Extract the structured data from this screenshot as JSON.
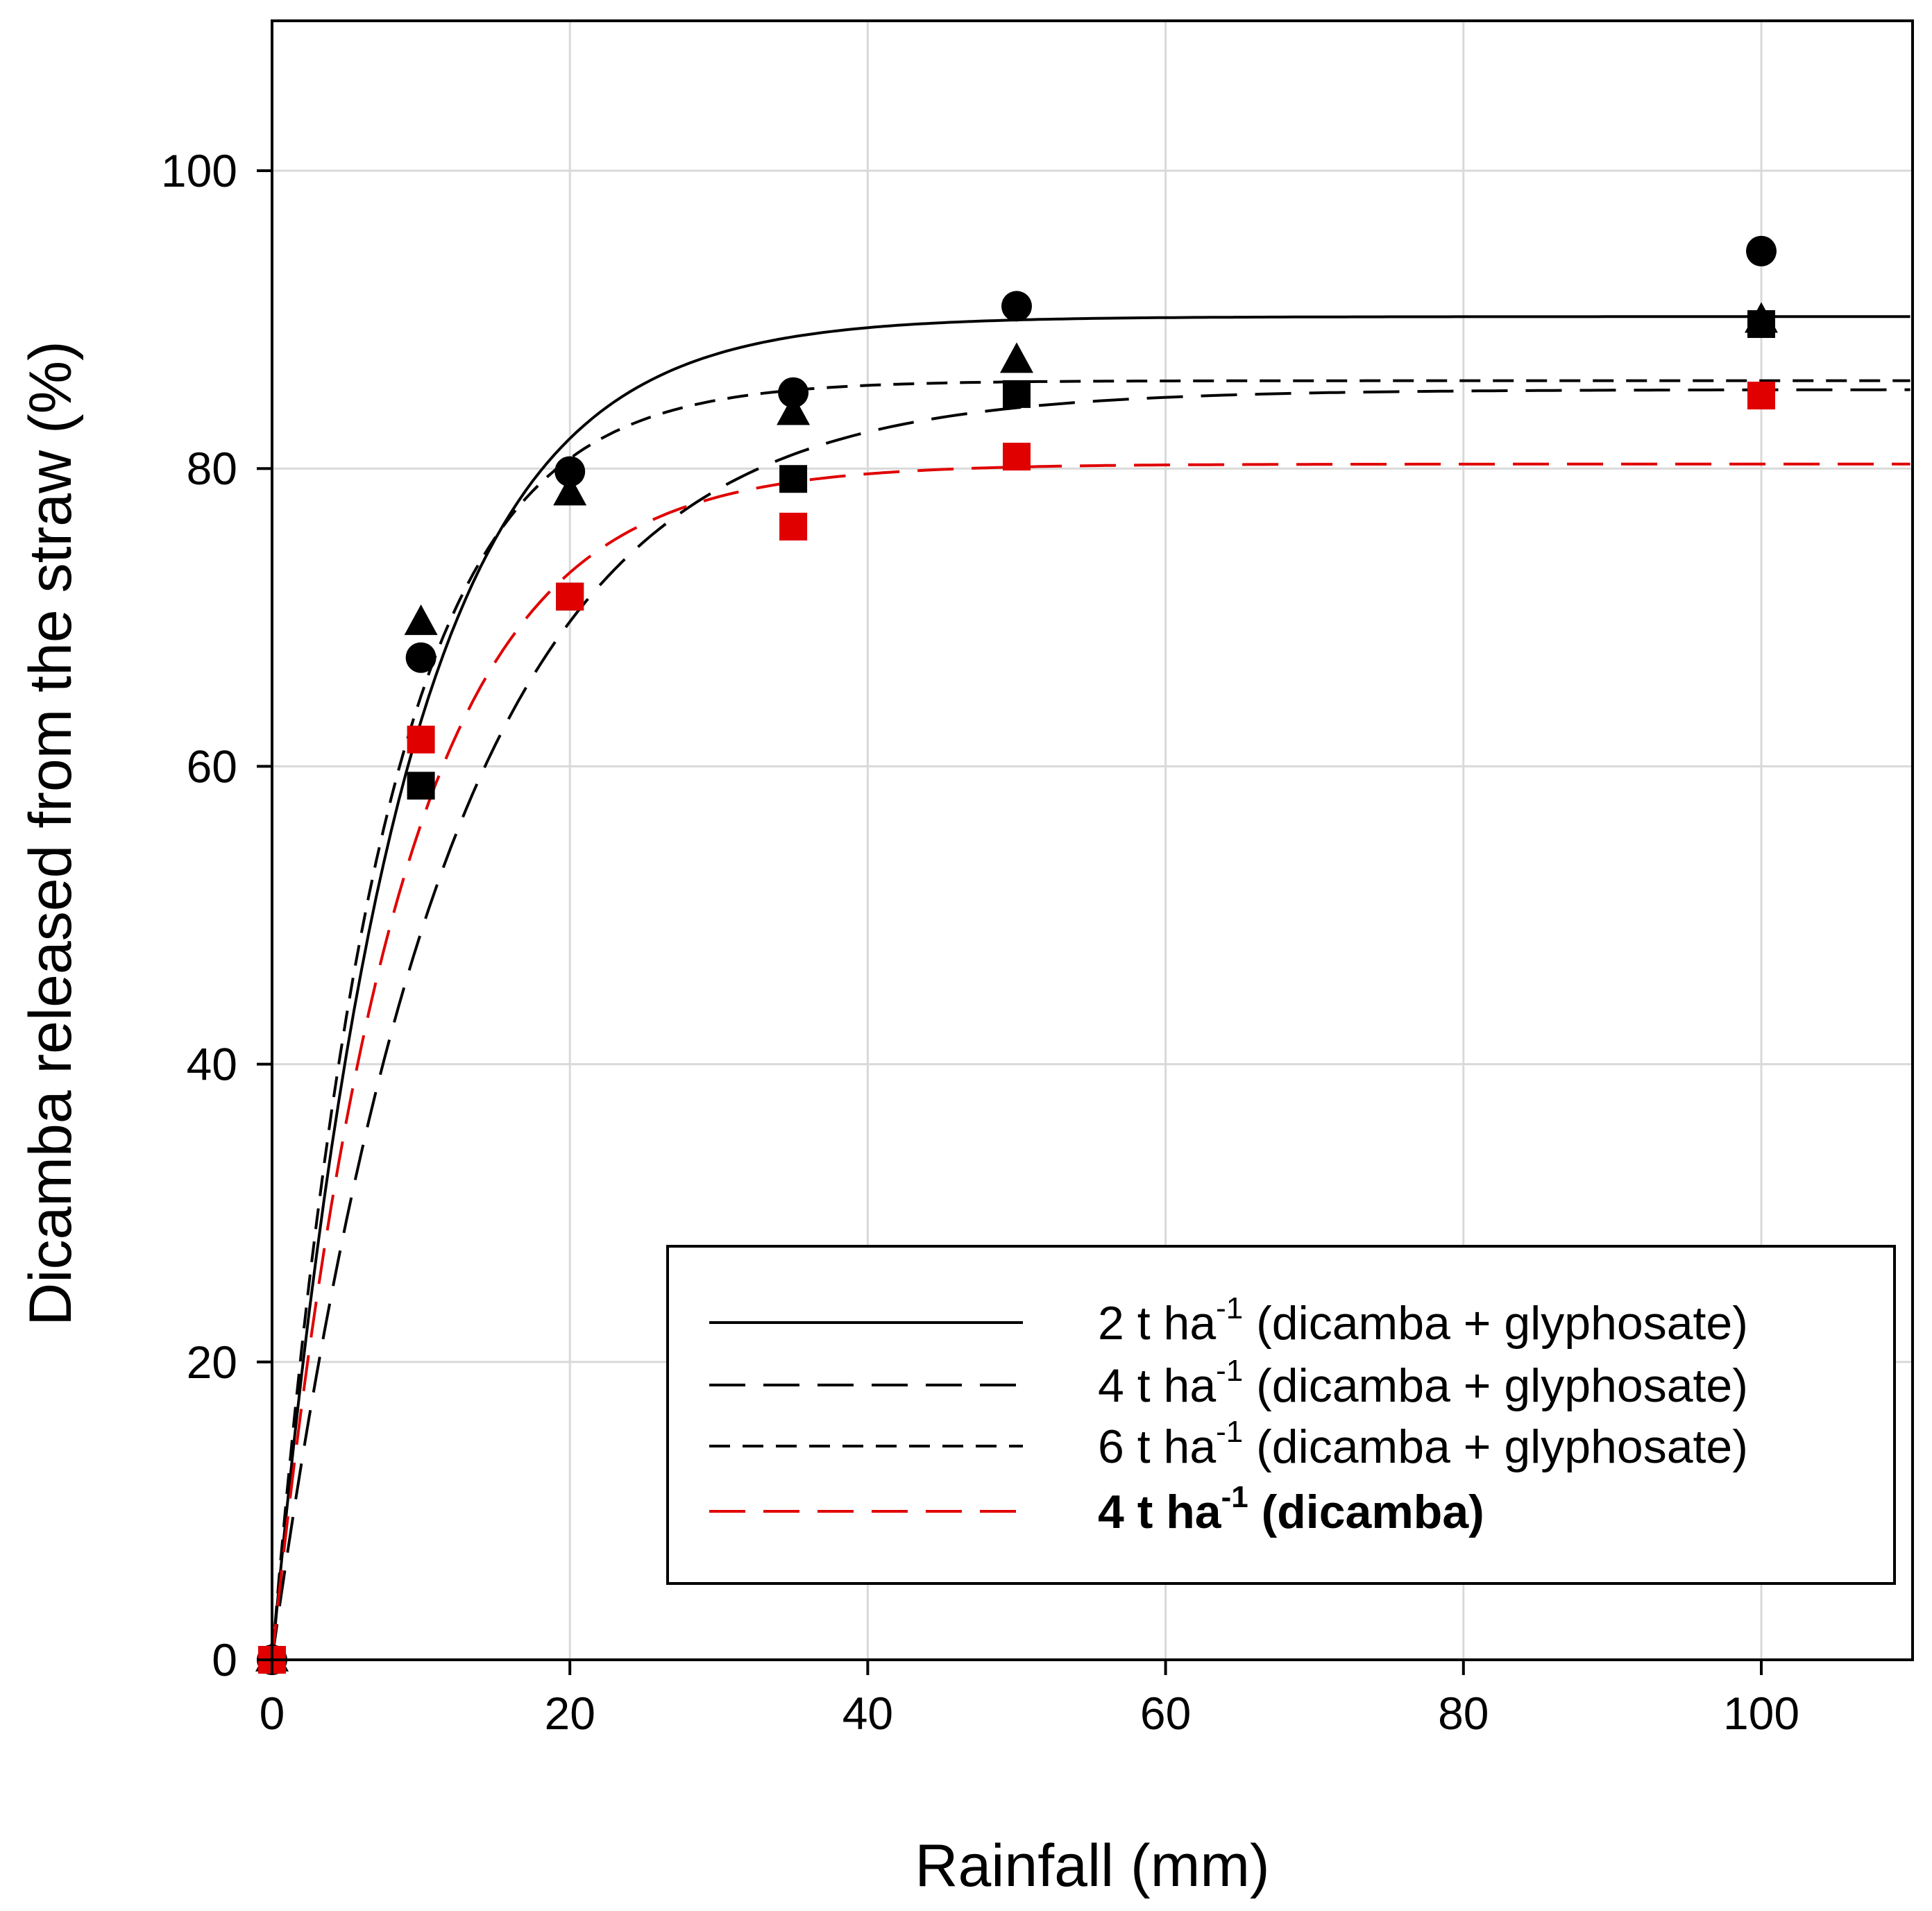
{
  "chart_data": {
    "type": "scatter",
    "xlabel": "Rainfall (mm)",
    "ylabel": "Dicamba released from the straw (%)",
    "xlim": [
      -2,
      110
    ],
    "ylim": [
      0,
      110
    ],
    "xticks": [
      0,
      20,
      40,
      60,
      80,
      100
    ],
    "yticks": [
      0,
      20,
      40,
      60,
      80,
      100
    ],
    "grid": true,
    "legend_position": "lower-right",
    "colors": {
      "black": "#000000",
      "red": "#e00000",
      "grid": "#d9d9d9"
    },
    "series": [
      {
        "name": "2 t ha-1 (dicamba + glyphosate)",
        "legend_prefix": "2 t ha",
        "legend_sup": "-1",
        "legend_suffix": " (dicamba + glyphosate)",
        "bold": false,
        "marker": "circle",
        "color": "#000000",
        "line_style": "solid",
        "x": [
          0,
          10,
          20,
          35,
          50,
          100
        ],
        "y": [
          0,
          67.3,
          79.8,
          85.1,
          90.9,
          94.6
        ],
        "fit": {
          "a": 90.2,
          "k": 0.12
        }
      },
      {
        "name": "4 t ha-1 (dicamba + glyphosate)",
        "legend_prefix": "4 t ha",
        "legend_sup": "-1",
        "legend_suffix": " (dicamba + glyphosate)",
        "bold": false,
        "marker": "square",
        "color": "#000000",
        "line_style": "long-dash",
        "x": [
          0,
          10,
          20,
          35,
          50,
          100
        ],
        "y": [
          0,
          58.7,
          71.4,
          79.3,
          85.0,
          89.7
        ],
        "fit": {
          "a": 85.3,
          "k": 0.085
        }
      },
      {
        "name": "6 t ha-1 (dicamba + glyphosate)",
        "legend_prefix": "6 t ha",
        "legend_sup": "-1",
        "legend_suffix": " (dicamba + glyphosate)",
        "bold": false,
        "marker": "triangle",
        "color": "#000000",
        "line_style": "short-dash",
        "x": [
          0,
          10,
          20,
          35,
          50,
          100
        ],
        "y": [
          0,
          69.6,
          78.3,
          83.7,
          87.2,
          89.9
        ],
        "fit": {
          "a": 85.9,
          "k": 0.14
        }
      },
      {
        "name": "4 t ha-1 (dicamba)",
        "legend_prefix": "4 t ha",
        "legend_sup": "-1",
        "legend_suffix": " (dicamba)",
        "bold": true,
        "marker": "square",
        "color": "#e00000",
        "line_style": "long-dash",
        "x": [
          0,
          10,
          20,
          35,
          50,
          100
        ],
        "y": [
          0,
          61.8,
          71.4,
          76.1,
          80.8,
          84.9
        ],
        "fit": {
          "a": 80.3,
          "k": 0.12
        }
      }
    ]
  }
}
